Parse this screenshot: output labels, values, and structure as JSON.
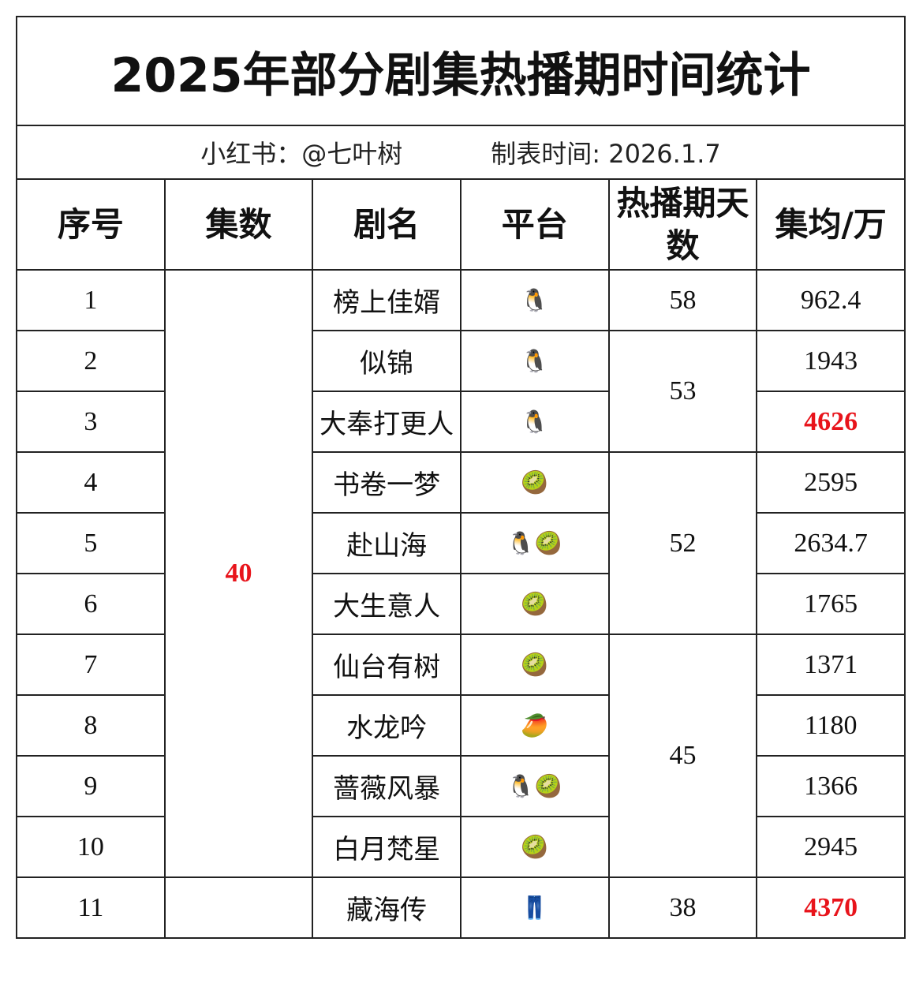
{
  "title": "2025年部分剧集热播期时间统计",
  "subtitle": {
    "source": "小红书：@七叶树",
    "date": "制表时间: 2026.1.7"
  },
  "table": {
    "header": [
      "序号",
      "集数",
      "剧名",
      "平台",
      "热播期天数",
      "集均/万"
    ],
    "rows": [
      {
        "no": 1,
        "episodes": 40,
        "episodes_highlight": true,
        "name": "榜上佳婿",
        "platform": "🐧",
        "days": 58,
        "avg": 962.4
      },
      {
        "no": 2,
        "name": "似锦",
        "platform": "🐧",
        "days": 53,
        "avg": 1943
      },
      {
        "no": 3,
        "name": "大奉打更人",
        "platform": "🐧",
        "avg": 4626,
        "avg_highlight": true
      },
      {
        "no": 4,
        "name": "书卷一梦",
        "platform": "🥝",
        "days": 52,
        "avg": 2595
      },
      {
        "no": 5,
        "name": "赴山海",
        "platform": "🐧🥝",
        "avg": 2634.7
      },
      {
        "no": 6,
        "name": "大生意人",
        "platform": "🥝",
        "avg": 1765
      },
      {
        "no": 7,
        "name": "仙台有树",
        "platform": "🥝",
        "days": 45,
        "avg": 1371
      },
      {
        "no": 8,
        "name": "水龙吟",
        "platform": "🥭",
        "avg": 1180
      },
      {
        "no": 9,
        "name": "蔷薇风暴",
        "platform": "🐧🥝",
        "avg": 1366
      },
      {
        "no": 10,
        "name": "白月梵星",
        "platform": "🥝",
        "avg": 2945
      },
      {
        "no": 11,
        "episodes": null,
        "name": "藏海传",
        "platform": "👖",
        "days": 38,
        "avg": 4370,
        "avg_highlight": true
      }
    ]
  }
}
